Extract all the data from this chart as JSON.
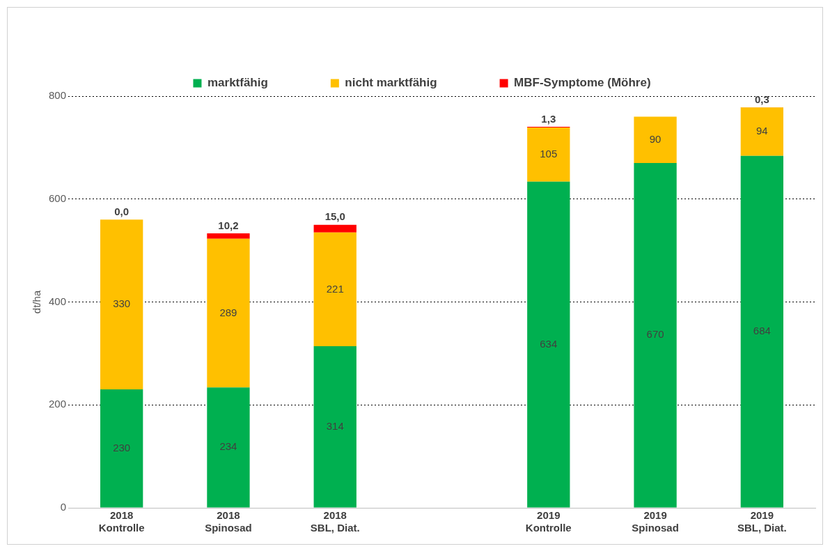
{
  "chart_data": {
    "type": "bar",
    "stacked": true,
    "ylabel": "dt/ha",
    "ylim": [
      0,
      800
    ],
    "yticks": [
      0,
      200,
      400,
      600,
      800
    ],
    "grid": "y",
    "legend": "top",
    "categories": [
      "2018\nKontrolle",
      "2018\nSpinosad",
      "2018\nSBL, Diat.",
      null,
      "2019\nKontrolle",
      "2019\nSpinosad",
      "2019\nSBL, Diat."
    ],
    "series": [
      {
        "name": "marktfähig",
        "color": "#00b050",
        "values": [
          230,
          234,
          314,
          null,
          634,
          670,
          684
        ],
        "value_labels": [
          "230",
          "234",
          "314",
          null,
          "634",
          "670",
          "684"
        ]
      },
      {
        "name": "nicht marktfähig",
        "color": "#ffc000",
        "values": [
          330,
          289,
          221,
          null,
          105,
          90,
          94
        ],
        "value_labels": [
          "330",
          "289",
          "221",
          null,
          "105",
          "90",
          "94"
        ]
      },
      {
        "name": "MBF-Symptome (Möhre)",
        "color": "#ff0000",
        "values": [
          0.0,
          10.2,
          15.0,
          null,
          1.3,
          null,
          0.3
        ],
        "value_labels": [
          "0,0",
          "10,2",
          "15,0",
          null,
          "1,3",
          null,
          "0,3"
        ]
      }
    ]
  }
}
